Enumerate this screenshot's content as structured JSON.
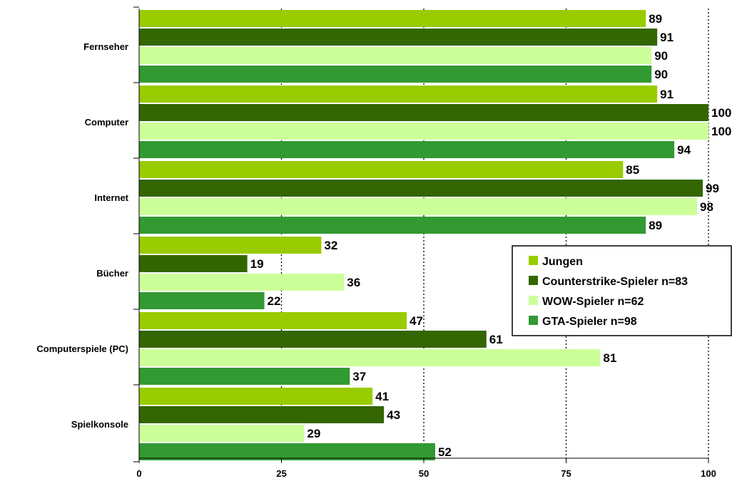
{
  "chart_data": {
    "type": "bar",
    "orientation": "horizontal",
    "categories": [
      "Fernseher",
      "Computer",
      "Internet",
      "Bücher",
      "Computerspiele (PC)",
      "Spielkonsole"
    ],
    "series": [
      {
        "name": "Jungen",
        "color": "#99cc00",
        "values": [
          89,
          91,
          85,
          32,
          47,
          41
        ]
      },
      {
        "name": "Counterstrike-Spieler n=83",
        "color": "#336600",
        "values": [
          91,
          100,
          99,
          19,
          61,
          43
        ]
      },
      {
        "name": "WOW-Spieler n=62",
        "color": "#ccff99",
        "values": [
          90,
          100,
          98,
          36,
          81,
          29
        ]
      },
      {
        "name": "GTA-Spieler n=98",
        "color": "#339933",
        "values": [
          90,
          94,
          89,
          22,
          37,
          52
        ]
      }
    ],
    "xlim": [
      0,
      100
    ],
    "xticks": [
      0,
      25,
      50,
      75,
      100
    ],
    "grid": "vertical dotted",
    "legend": "right"
  }
}
